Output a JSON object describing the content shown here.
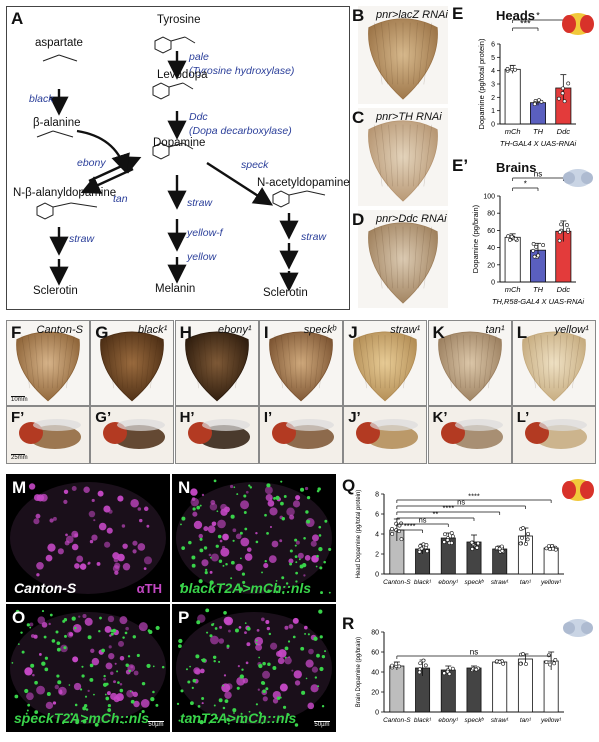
{
  "colors": {
    "pathway_blue": "#2b3f9a",
    "mch_bar": "#ffffff",
    "th_bar": "#5a5fbf",
    "ddc_bar": "#e33b3b",
    "magenta": "#c548c5",
    "green": "#39d34a",
    "q_canton": "#bdbdbd",
    "q_dark": "#444444",
    "q_white": "#ffffff"
  },
  "panel_a": {
    "letter": "A",
    "tyrosine": "Tyrosine",
    "pale": "pale",
    "pale_enzyme": "(Tyrosine hydroxylase)",
    "levodopa": "Levodopa",
    "ddc": "Ddc",
    "ddc_enzyme": "(Dopa decarboxylase)",
    "dopamine": "Dopamine",
    "aspartate": "aspartate",
    "black": "black",
    "beta_alanine": "β-alanine",
    "ebony": "ebony",
    "tan": "tan",
    "speck": "speck",
    "nbad": "N-β-alanyldopamine",
    "nada": "N-acetyldopamine",
    "straw": "straw",
    "yellow_f": "yellow-f",
    "yellow": "yellow",
    "melanin": "Melanin",
    "sclerotin": "Sclerotin"
  },
  "panels_bcd": [
    {
      "letter": "B",
      "label": "pnr>lacZ RNAi"
    },
    {
      "letter": "C",
      "label": "pnr>TH RNAi"
    },
    {
      "letter": "D",
      "label": "pnr>Ddc RNAi"
    }
  ],
  "panels_row2": [
    {
      "letter": "F",
      "label": "Canton-S",
      "sub": "F’"
    },
    {
      "letter": "G",
      "label": "black¹",
      "sub": "G’"
    },
    {
      "letter": "H",
      "label": "ebony¹",
      "sub": "H’"
    },
    {
      "letter": "I",
      "label": "speckᵇ",
      "sub": "I’"
    },
    {
      "letter": "J",
      "label": "straw¹",
      "sub": "J’"
    },
    {
      "letter": "K",
      "label": "tan¹",
      "sub": "K’"
    },
    {
      "letter": "L",
      "label": "yellow¹",
      "sub": "L’"
    }
  ],
  "scalebars_row2": {
    "top": "10mm",
    "bottom": "25mm"
  },
  "confocal": [
    {
      "letter": "M",
      "label": "Canton-S",
      "channel": "αTH"
    },
    {
      "letter": "N",
      "label": "blackT2A>mCh::nls"
    },
    {
      "letter": "O",
      "label": "speckT2A>mCh::nls",
      "scale": "50µm"
    },
    {
      "letter": "P",
      "label": "tanT2A>mCh::nls",
      "scale": "50µm"
    }
  ],
  "chart_data": [
    {
      "panel": "E",
      "type": "bar",
      "title": "Heads",
      "ylabel": "Dopamine (pg/total protein)",
      "xlabel": "TH-GAL4 X UAS-RNAi",
      "categories": [
        "mCh",
        "TH",
        "Ddc"
      ],
      "values": [
        4.1,
        1.6,
        2.7
      ],
      "errors": [
        0.3,
        0.2,
        1.0
      ],
      "ylim": [
        0,
        6
      ],
      "yticks": [
        0,
        1,
        2,
        3,
        4,
        5,
        6
      ],
      "significance": [
        {
          "from": 0,
          "to": 1,
          "label": "***"
        },
        {
          "from": 0,
          "to": 2,
          "label": "*"
        }
      ]
    },
    {
      "panel": "E’",
      "type": "bar",
      "title": "Brains",
      "ylabel": "Dopamine (pg/brain)",
      "xlabel": "TH,R58-GAL4 X UAS-RNAi",
      "categories": [
        "mCh",
        "TH",
        "Ddc"
      ],
      "values": [
        52,
        37,
        59
      ],
      "errors": [
        4,
        8,
        12
      ],
      "ylim": [
        0,
        100
      ],
      "yticks": [
        0,
        20,
        40,
        60,
        80,
        100
      ],
      "significance": [
        {
          "from": 0,
          "to": 1,
          "label": "*"
        },
        {
          "from": 0,
          "to": 2,
          "label": "ns"
        }
      ]
    },
    {
      "panel": "Q",
      "type": "bar",
      "ylabel": "Head Dopamine (pg/total protein)",
      "categories": [
        "Canton-S",
        "black¹",
        "ebony¹",
        "speckᵇ",
        "straw¹",
        "tan¹",
        "yellow¹"
      ],
      "values": [
        4.4,
        2.5,
        3.6,
        3.2,
        2.5,
        3.8,
        2.6
      ],
      "errors": [
        1.1,
        0.5,
        0.5,
        0.7,
        0.3,
        0.8,
        0.3
      ],
      "ylim": [
        0,
        8
      ],
      "yticks": [
        0,
        2,
        4,
        6,
        8
      ],
      "significance": [
        {
          "from": 0,
          "to": 1,
          "label": "****"
        },
        {
          "from": 0,
          "to": 2,
          "label": "ns"
        },
        {
          "from": 0,
          "to": 3,
          "label": "**"
        },
        {
          "from": 0,
          "to": 4,
          "label": "****"
        },
        {
          "from": 0,
          "to": 5,
          "label": "ns"
        },
        {
          "from": 0,
          "to": 6,
          "label": "****"
        }
      ]
    },
    {
      "panel": "R",
      "type": "bar",
      "ylabel": "Brain Dopamine (pg/brain)",
      "categories": [
        "Canton-S",
        "black¹",
        "ebony¹",
        "speckᵇ",
        "straw¹",
        "tan¹",
        "yellow¹"
      ],
      "values": [
        46,
        44,
        42,
        44,
        50,
        53,
        51
      ],
      "errors": [
        4,
        8,
        4,
        2,
        2,
        5,
        9
      ],
      "ylim": [
        0,
        80
      ],
      "yticks": [
        0,
        20,
        40,
        60,
        80
      ],
      "significance": [
        {
          "from": 0,
          "to": 6,
          "label": "ns"
        }
      ]
    }
  ]
}
